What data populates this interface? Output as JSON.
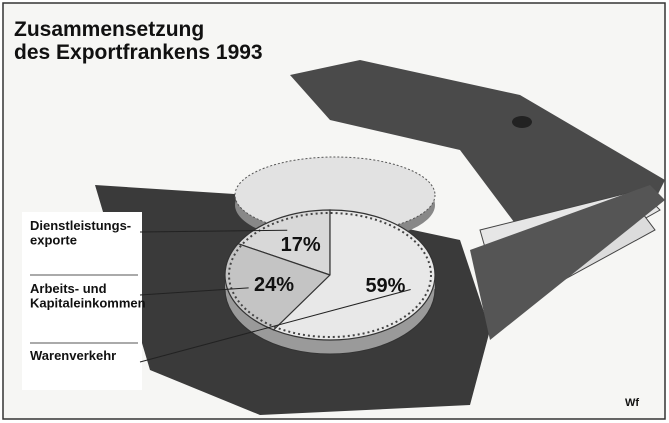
{
  "chart_data": {
    "type": "pie",
    "title": "Zusammensetzung\ndes Exportfrankens 1993",
    "categories": [
      "Dienstleistungs-\nexporte",
      "Arbeits- und\nKapitaleinkommen",
      "Warenverkehr"
    ],
    "values": [
      17,
      24,
      59
    ],
    "value_labels": [
      "17%",
      "24%",
      "59%"
    ],
    "colors": [
      "#d8d8d8",
      "#c4c4c4",
      "#e8e8e8"
    ],
    "source": "Wf"
  }
}
